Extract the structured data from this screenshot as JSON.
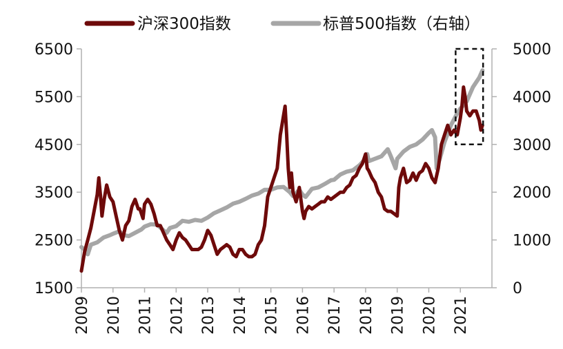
{
  "chart_data": {
    "type": "line",
    "title": "",
    "xlabel": "",
    "ylabel": "",
    "y2label": "",
    "ylim": [
      1500,
      6500
    ],
    "y2lim": [
      0,
      5000
    ],
    "x_ticks": [
      "2009",
      "2010",
      "2011",
      "2012",
      "2013",
      "2014",
      "2015",
      "2016",
      "2017",
      "2018",
      "2019",
      "2020",
      "2021"
    ],
    "y_ticks": [
      "1500",
      "2500",
      "3500",
      "4500",
      "5500",
      "6500"
    ],
    "y2_ticks": [
      "0",
      "1000",
      "2000",
      "3000",
      "4000",
      "5000"
    ],
    "highlight_box": {
      "x_range": [
        2020.85,
        2021.72
      ],
      "y2_range": [
        3000,
        5000
      ],
      "style": "dashed"
    },
    "series": [
      {
        "name": "沪深300指数",
        "axis": "left",
        "color": "#6e0a0a",
        "x": [
          2009.0,
          2009.1,
          2009.2,
          2009.3,
          2009.4,
          2009.5,
          2009.55,
          2009.6,
          2009.65,
          2009.72,
          2009.8,
          2009.9,
          2010.0,
          2010.1,
          2010.2,
          2010.3,
          2010.4,
          2010.5,
          2010.6,
          2010.7,
          2010.8,
          2010.85,
          2010.95,
          2011.0,
          2011.1,
          2011.2,
          2011.3,
          2011.4,
          2011.5,
          2011.6,
          2011.7,
          2011.8,
          2011.9,
          2012.0,
          2012.1,
          2012.2,
          2012.3,
          2012.4,
          2012.5,
          2012.6,
          2012.7,
          2012.8,
          2012.9,
          2013.0,
          2013.1,
          2013.2,
          2013.3,
          2013.4,
          2013.5,
          2013.6,
          2013.7,
          2013.8,
          2013.9,
          2014.0,
          2014.1,
          2014.2,
          2014.3,
          2014.4,
          2014.5,
          2014.6,
          2014.7,
          2014.8,
          2014.9,
          2015.0,
          2015.1,
          2015.2,
          2015.3,
          2015.4,
          2015.45,
          2015.5,
          2015.55,
          2015.6,
          2015.65,
          2015.7,
          2015.8,
          2015.9,
          2016.0,
          2016.05,
          2016.1,
          2016.2,
          2016.3,
          2016.4,
          2016.5,
          2016.6,
          2016.7,
          2016.8,
          2016.9,
          2017.0,
          2017.1,
          2017.2,
          2017.3,
          2017.4,
          2017.5,
          2017.6,
          2017.7,
          2017.8,
          2017.9,
          2018.0,
          2018.05,
          2018.1,
          2018.2,
          2018.3,
          2018.4,
          2018.5,
          2018.6,
          2018.7,
          2018.8,
          2018.9,
          2019.0,
          2019.05,
          2019.1,
          2019.2,
          2019.3,
          2019.4,
          2019.5,
          2019.6,
          2019.7,
          2019.8,
          2019.9,
          2020.0,
          2020.1,
          2020.2,
          2020.3,
          2020.4,
          2020.5,
          2020.6,
          2020.7,
          2020.8,
          2020.9,
          2021.0,
          2021.05,
          2021.1,
          2021.15,
          2021.2,
          2021.3,
          2021.4,
          2021.5,
          2021.6,
          2021.65,
          2021.7
        ],
        "values": [
          1850,
          2250,
          2500,
          2750,
          3100,
          3450,
          3800,
          3450,
          3000,
          3350,
          3650,
          3400,
          3300,
          3000,
          2700,
          2500,
          2800,
          2900,
          3200,
          3350,
          3150,
          3150,
          2950,
          3250,
          3350,
          3250,
          3050,
          2800,
          2800,
          2650,
          2500,
          2400,
          2300,
          2500,
          2650,
          2550,
          2500,
          2400,
          2300,
          2300,
          2300,
          2350,
          2500,
          2700,
          2600,
          2400,
          2200,
          2300,
          2350,
          2400,
          2350,
          2200,
          2150,
          2300,
          2300,
          2200,
          2150,
          2150,
          2200,
          2400,
          2500,
          2800,
          3400,
          3600,
          3800,
          4000,
          4700,
          5100,
          5300,
          4700,
          4000,
          3600,
          3900,
          3500,
          3300,
          3600,
          3100,
          2950,
          3100,
          3200,
          3150,
          3200,
          3250,
          3300,
          3300,
          3400,
          3350,
          3400,
          3450,
          3500,
          3500,
          3600,
          3650,
          3800,
          3850,
          4000,
          4100,
          4300,
          4000,
          3950,
          3800,
          3700,
          3500,
          3400,
          3150,
          3100,
          3100,
          3050,
          3000,
          3600,
          3800,
          4000,
          3700,
          3750,
          3900,
          3750,
          3900,
          3950,
          4100,
          4000,
          3800,
          3700,
          4000,
          4500,
          4700,
          4900,
          4700,
          4800,
          4700,
          5050,
          5300,
          5700,
          5500,
          5200,
          5100,
          5200,
          5200,
          5000,
          4800,
          4900
        ],
        "label_order": 0
      },
      {
        "name": "标普500指数（右轴）",
        "axis": "right",
        "color": "#a6a6a6",
        "x": [
          2009.0,
          2009.1,
          2009.2,
          2009.3,
          2009.5,
          2009.7,
          2009.9,
          2010.0,
          2010.2,
          2010.35,
          2010.5,
          2010.7,
          2010.9,
          2011.0,
          2011.2,
          2011.4,
          2011.6,
          2011.7,
          2011.8,
          2012.0,
          2012.2,
          2012.4,
          2012.6,
          2012.8,
          2013.0,
          2013.2,
          2013.4,
          2013.6,
          2013.8,
          2014.0,
          2014.2,
          2014.4,
          2014.6,
          2014.8,
          2015.0,
          2015.2,
          2015.4,
          2015.6,
          2015.7,
          2015.9,
          2016.0,
          2016.1,
          2016.3,
          2016.5,
          2016.7,
          2016.9,
          2017.0,
          2017.2,
          2017.4,
          2017.6,
          2017.8,
          2018.0,
          2018.05,
          2018.1,
          2018.3,
          2018.5,
          2018.7,
          2018.8,
          2018.95,
          2019.0,
          2019.2,
          2019.4,
          2019.6,
          2019.8,
          2020.0,
          2020.1,
          2020.2,
          2020.25,
          2020.35,
          2020.5,
          2020.7,
          2020.9,
          2021.0,
          2021.2,
          2021.4,
          2021.6,
          2021.7
        ],
        "values": [
          850,
          800,
          700,
          900,
          950,
          1050,
          1100,
          1130,
          1180,
          1100,
          1080,
          1150,
          1220,
          1280,
          1330,
          1320,
          1200,
          1150,
          1250,
          1290,
          1400,
          1380,
          1420,
          1400,
          1470,
          1560,
          1620,
          1680,
          1760,
          1800,
          1860,
          1930,
          1970,
          2050,
          2050,
          2100,
          2110,
          2000,
          1920,
          2050,
          1950,
          1900,
          2070,
          2100,
          2170,
          2250,
          2260,
          2370,
          2430,
          2460,
          2560,
          2700,
          2800,
          2650,
          2700,
          2750,
          2900,
          2750,
          2500,
          2700,
          2850,
          2950,
          3000,
          3100,
          3240,
          3300,
          3150,
          2500,
          2700,
          3050,
          3400,
          3650,
          3750,
          3900,
          4200,
          4400,
          4550
        ],
        "label_order": 1
      }
    ]
  }
}
